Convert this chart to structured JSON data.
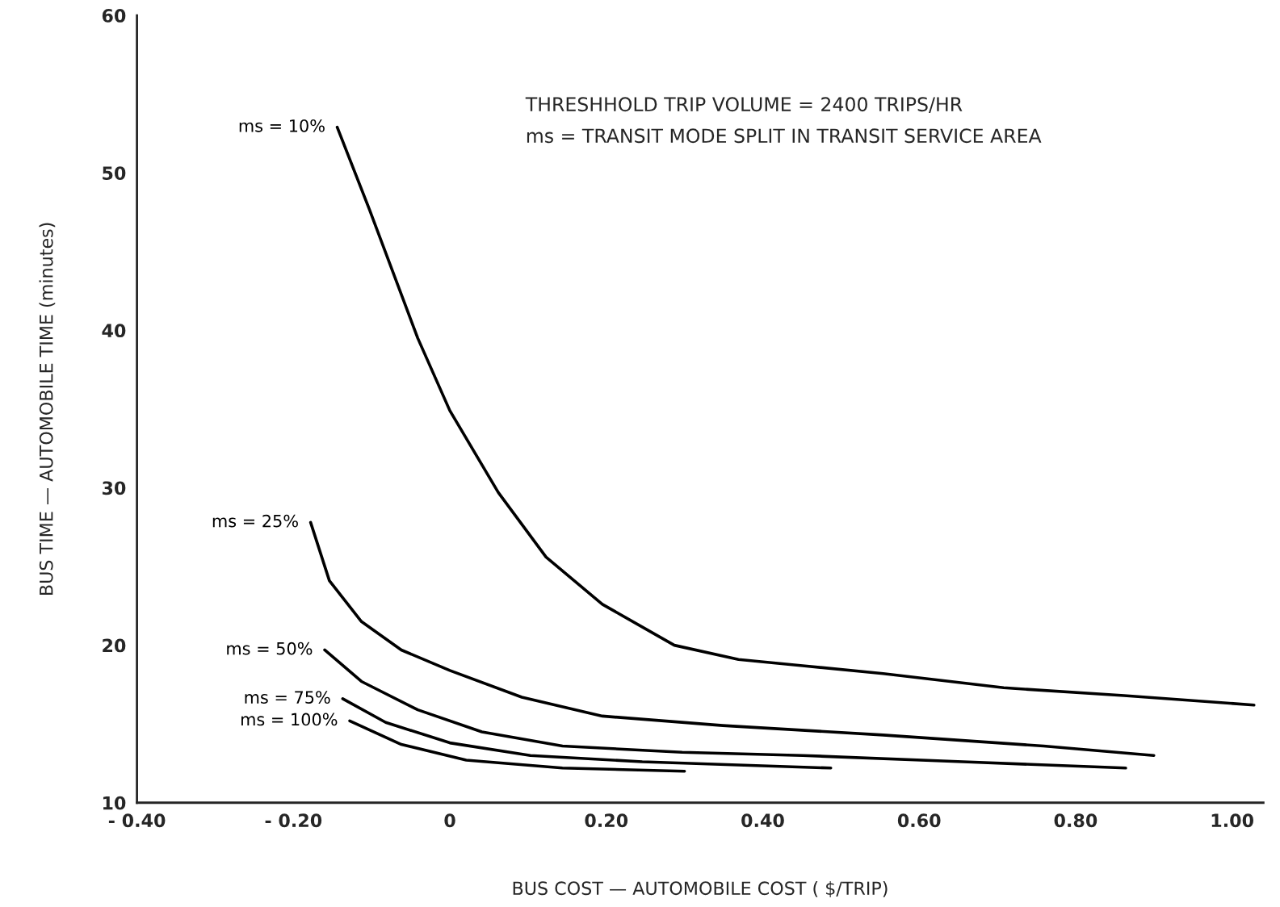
{
  "chart_data": {
    "type": "line",
    "xlabel": "BUS COST — AUTOMOBILE COST ( $/TRIP)",
    "ylabel": "BUS TIME — AUTOMOBILE TIME (minutes)",
    "annotations": [
      "THRESHHOLD TRIP VOLUME = 2400 TRIPS/HR",
      "ms = TRANSIT MODE SPLIT IN TRANSIT SERVICE AREA"
    ],
    "xlim": [
      -0.4,
      1.04
    ],
    "ylim": [
      10,
      60
    ],
    "xticks": [
      {
        "value": -0.4,
        "label": "- 0.40"
      },
      {
        "value": -0.2,
        "label": "- 0.20"
      },
      {
        "value": 0,
        "label": "0"
      },
      {
        "value": 0.2,
        "label": "0.20"
      },
      {
        "value": 0.4,
        "label": "0.40"
      },
      {
        "value": 0.6,
        "label": "0.60"
      },
      {
        "value": 0.8,
        "label": "0.80"
      },
      {
        "value": 1.0,
        "label": "1.00"
      }
    ],
    "yticks": [
      10,
      20,
      30,
      40,
      50,
      60
    ],
    "grid": false,
    "legend": false,
    "marker": "none",
    "line_style": "solid",
    "series": [
      {
        "name": "ms = 10%",
        "color": "#000000",
        "x": [
          -0.144,
          -0.103,
          -0.041,
          0,
          0.062,
          0.123,
          0.195,
          0.287,
          0.369,
          0.451,
          0.554,
          0.708,
          0.862,
          1.028
        ],
        "values": [
          52.9,
          47.7,
          39.5,
          34.9,
          29.7,
          25.6,
          22.6,
          20.0,
          19.1,
          18.7,
          18.2,
          17.3,
          16.8,
          16.2
        ]
      },
      {
        "name": "ms = 25%",
        "color": "#000000",
        "x": [
          -0.178,
          -0.154,
          -0.113,
          -0.062,
          0,
          0.092,
          0.195,
          0.349,
          0.554,
          0.759,
          0.9
        ],
        "values": [
          27.8,
          24.1,
          21.5,
          19.7,
          18.4,
          16.7,
          15.5,
          14.9,
          14.3,
          13.6,
          13.0
        ]
      },
      {
        "name": "ms = 50%",
        "color": "#000000",
        "x": [
          -0.16,
          -0.113,
          -0.041,
          0.041,
          0.144,
          0.297,
          0.451,
          0.656,
          0.864
        ],
        "values": [
          19.7,
          17.7,
          15.9,
          14.5,
          13.6,
          13.2,
          13.0,
          12.6,
          12.2
        ]
      },
      {
        "name": "ms = 75%",
        "color": "#000000",
        "x": [
          -0.137,
          -0.082,
          0,
          0.103,
          0.246,
          0.487
        ],
        "values": [
          16.6,
          15.1,
          13.8,
          13.0,
          12.6,
          12.2
        ]
      },
      {
        "name": "ms = 100%",
        "color": "#000000",
        "x": [
          -0.128,
          -0.062,
          0.021,
          0.144,
          0.3
        ],
        "values": [
          15.2,
          13.7,
          12.7,
          12.2,
          12.0
        ]
      }
    ]
  }
}
